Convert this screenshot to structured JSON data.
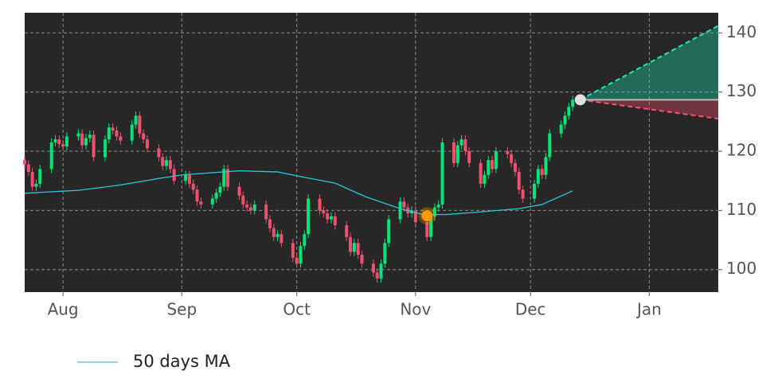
{
  "chart_data": {
    "type": "candlestick",
    "xlim": [
      0,
      181
    ],
    "ylim": [
      96.2,
      143.4
    ],
    "xticks": [
      {
        "value": 10,
        "label": "Aug"
      },
      {
        "value": 41,
        "label": "Sep"
      },
      {
        "value": 71,
        "label": "Oct"
      },
      {
        "value": 102,
        "label": "Nov"
      },
      {
        "value": 132,
        "label": "Dec"
      },
      {
        "value": 163,
        "label": "Jan"
      }
    ],
    "yticks": [
      100,
      110,
      120,
      130,
      140
    ],
    "grid": true,
    "up_color": "#00e676",
    "down_color": "#f0506e",
    "x": [
      0,
      1,
      2,
      3,
      4,
      7,
      8,
      9,
      10,
      11,
      14,
      15,
      16,
      17,
      18,
      21,
      22,
      23,
      24,
      25,
      28,
      29,
      30,
      31,
      32,
      35,
      36,
      37,
      38,
      39,
      42,
      43,
      44,
      45,
      46,
      49,
      50,
      51,
      52,
      53,
      56,
      57,
      58,
      59,
      60,
      63,
      64,
      65,
      66,
      67,
      70,
      71,
      72,
      73,
      74,
      77,
      78,
      79,
      80,
      81,
      84,
      85,
      86,
      87,
      88,
      91,
      92,
      93,
      94,
      95,
      98,
      99,
      100,
      101,
      102,
      105,
      106,
      107,
      108,
      109,
      112,
      113,
      114,
      115,
      116,
      119,
      120,
      121,
      122,
      123,
      126,
      127,
      128,
      129,
      130,
      133,
      134,
      135,
      136,
      137,
      140,
      141,
      142,
      143
    ],
    "open": [
      118.5,
      117.8,
      116.5,
      114.0,
      114.5,
      117.0,
      121.5,
      122.0,
      121.2,
      120.8,
      122.5,
      123.0,
      121.0,
      122.2,
      122.8,
      119.0,
      122.0,
      124.0,
      123.5,
      122.5,
      121.8,
      124.5,
      126.0,
      123.0,
      122.0,
      120.5,
      119.0,
      117.5,
      118.5,
      117.0,
      115.0,
      116.0,
      114.5,
      113.5,
      111.5,
      111.0,
      112.0,
      113.0,
      114.0,
      117.0,
      114.0,
      112.5,
      111.0,
      110.5,
      110.0,
      111.0,
      108.5,
      107.0,
      105.5,
      106.0,
      104.5,
      102.0,
      101.0,
      104.0,
      106.0,
      112.0,
      110.0,
      109.5,
      108.5,
      109.0,
      107.5,
      105.5,
      103.0,
      104.5,
      102.5,
      101.0,
      99.5,
      98.5,
      101.0,
      104.5,
      108.5,
      111.5,
      110.5,
      109.5,
      110.0,
      108.0,
      105.5,
      109.0,
      110.5,
      111.0,
      121.5,
      118.0,
      121.0,
      122.0,
      120.0,
      118.0,
      114.5,
      116.0,
      118.5,
      117.0,
      120.0,
      119.5,
      118.0,
      116.5,
      113.5,
      112.0,
      114.5,
      117.0,
      116.0,
      119.0,
      123.0,
      124.5,
      126.0,
      127.5
    ],
    "high": [
      119.2,
      118.5,
      117.2,
      115.2,
      117.7,
      122.2,
      122.7,
      122.7,
      121.9,
      123.2,
      123.7,
      123.7,
      122.9,
      123.5,
      123.5,
      122.7,
      124.7,
      124.7,
      124.2,
      123.2,
      125.2,
      126.7,
      126.7,
      123.7,
      122.7,
      121.2,
      119.7,
      119.2,
      119.2,
      117.7,
      116.7,
      116.7,
      115.2,
      114.2,
      112.2,
      112.7,
      113.7,
      114.7,
      117.7,
      117.7,
      114.7,
      113.2,
      111.7,
      111.2,
      111.7,
      111.7,
      109.2,
      107.7,
      106.7,
      106.7,
      105.2,
      102.7,
      104.7,
      106.7,
      112.7,
      112.7,
      110.7,
      110.2,
      109.7,
      109.7,
      108.2,
      106.2,
      105.2,
      105.2,
      103.2,
      101.7,
      100.2,
      101.7,
      105.2,
      109.2,
      112.2,
      112.2,
      111.2,
      110.7,
      110.7,
      108.7,
      109.7,
      111.2,
      111.7,
      122.2,
      122.2,
      121.7,
      122.7,
      122.7,
      120.7,
      118.7,
      116.7,
      119.2,
      119.2,
      120.7,
      120.7,
      120.2,
      118.7,
      117.2,
      114.2,
      115.2,
      117.7,
      117.7,
      119.7,
      123.7,
      125.2,
      126.7,
      128.2,
      129.4
    ],
    "low": [
      117.1,
      115.8,
      113.3,
      113.3,
      113.8,
      116.3,
      120.8,
      120.5,
      120.1,
      120.1,
      121.8,
      120.3,
      120.3,
      121.5,
      118.3,
      118.3,
      121.3,
      122.8,
      121.8,
      121.1,
      121.1,
      123.8,
      122.3,
      121.3,
      119.8,
      118.3,
      116.8,
      116.8,
      116.3,
      114.3,
      114.3,
      113.8,
      112.8,
      110.8,
      110.3,
      110.3,
      111.3,
      112.3,
      113.3,
      113.3,
      111.8,
      110.3,
      109.8,
      109.3,
      109.3,
      107.8,
      106.3,
      104.8,
      104.8,
      103.8,
      101.3,
      100.3,
      100.3,
      103.3,
      105.3,
      109.3,
      108.8,
      107.8,
      107.8,
      106.8,
      104.8,
      102.3,
      102.3,
      101.8,
      100.3,
      98.8,
      97.8,
      97.8,
      100.3,
      103.8,
      107.8,
      109.8,
      108.8,
      108.8,
      107.3,
      104.8,
      104.8,
      108.3,
      109.8,
      110.3,
      117.3,
      117.3,
      120.3,
      119.3,
      117.3,
      113.8,
      113.8,
      115.3,
      116.3,
      116.3,
      118.8,
      117.3,
      115.8,
      112.8,
      111.3,
      111.3,
      113.8,
      115.3,
      115.3,
      118.3,
      122.3,
      123.8,
      125.3,
      126.8
    ],
    "close": [
      117.8,
      116.5,
      114.0,
      114.5,
      117.0,
      121.5,
      122.0,
      121.2,
      120.8,
      122.5,
      123.0,
      121.0,
      122.2,
      122.8,
      119.0,
      122.0,
      124.0,
      123.5,
      122.5,
      121.8,
      124.5,
      126.0,
      123.0,
      122.0,
      120.5,
      119.0,
      117.5,
      118.5,
      117.0,
      115.0,
      116.0,
      114.5,
      113.5,
      111.5,
      111.0,
      112.0,
      113.0,
      114.0,
      117.0,
      114.0,
      112.5,
      111.0,
      110.5,
      110.0,
      111.0,
      108.5,
      107.0,
      105.5,
      106.0,
      104.5,
      102.0,
      101.0,
      104.0,
      106.0,
      112.0,
      110.0,
      109.5,
      108.5,
      109.0,
      107.5,
      105.5,
      103.0,
      104.5,
      102.5,
      101.0,
      99.5,
      98.5,
      101.0,
      104.5,
      108.5,
      111.5,
      110.5,
      109.5,
      110.0,
      108.0,
      105.5,
      109.0,
      110.5,
      111.0,
      121.5,
      118.0,
      121.0,
      122.0,
      120.0,
      118.0,
      114.5,
      116.0,
      118.5,
      117.0,
      120.0,
      119.5,
      118.0,
      116.5,
      113.5,
      112.0,
      114.5,
      117.0,
      116.0,
      119.0,
      123.0,
      124.5,
      126.0,
      127.5,
      128.7
    ],
    "series": [
      {
        "name": "50 days MA",
        "color": "#26c6da",
        "x": [
          0,
          14,
          25,
          35,
          41,
          56,
          66,
          73,
          81,
          89,
          98,
          104,
          110,
          118,
          129,
          135,
          143
        ],
        "values": [
          112.9,
          113.4,
          114.3,
          115.4,
          116.0,
          116.7,
          116.5,
          115.6,
          114.6,
          112.3,
          110.3,
          109.3,
          109.3,
          109.7,
          110.3,
          111.0,
          113.3
        ]
      }
    ],
    "forecast": {
      "x": [
        145,
        181
      ],
      "upper": [
        128.7,
        141.2
      ],
      "mid": [
        128.7,
        128.7
      ],
      "lower": [
        128.7,
        125.5
      ],
      "up_color": "#1de9b6",
      "down_color": "#ff4d6d"
    },
    "markers": [
      {
        "x": 105,
        "y": 109.1,
        "color": "#ff9800"
      },
      {
        "x": 145,
        "y": 128.7,
        "color": "#e0e0e0"
      }
    ]
  }
}
